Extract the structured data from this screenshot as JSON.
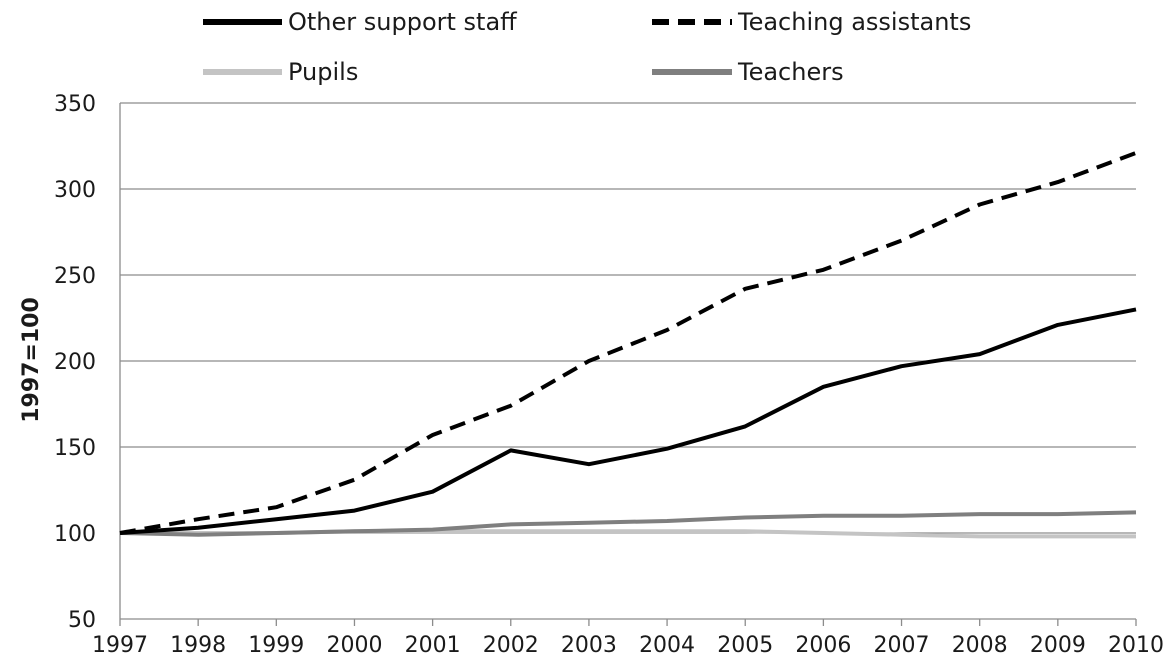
{
  "chart_data": {
    "type": "line",
    "title": "",
    "xlabel": "",
    "ylabel": "1997=100",
    "x": [
      1997,
      1998,
      1999,
      2000,
      2001,
      2002,
      2003,
      2004,
      2005,
      2006,
      2007,
      2008,
      2009,
      2010
    ],
    "x_tick_labels": [
      "1997",
      "1998",
      "1999",
      "2000",
      "2001",
      "2002",
      "2003",
      "2004",
      "2005",
      "2006",
      "2007",
      "2008",
      "2009",
      "2010"
    ],
    "y_ticks": [
      50,
      100,
      150,
      200,
      250,
      300,
      350
    ],
    "y_tick_labels": [
      "50",
      "100",
      "150",
      "200",
      "250",
      "300",
      "350"
    ],
    "ylim": [
      50,
      350
    ],
    "xlim": [
      1997,
      2010
    ],
    "grid": "horizontal",
    "legend_position": "top",
    "series": [
      {
        "name": "Other support staff",
        "color": "#000000",
        "dash": "solid",
        "values": [
          100,
          103,
          108,
          113,
          124,
          148,
          140,
          149,
          162,
          185,
          197,
          204,
          221,
          230
        ]
      },
      {
        "name": "Teaching assistants",
        "color": "#000000",
        "dash": "dashed",
        "values": [
          100,
          108,
          115,
          131,
          157,
          174,
          200,
          218,
          242,
          253,
          270,
          291,
          304,
          321
        ]
      },
      {
        "name": "Pupils",
        "color": "#c4c4c4",
        "dash": "solid",
        "values": [
          100,
          100,
          100,
          101,
          101,
          101,
          101,
          101,
          101,
          100,
          99,
          98,
          98,
          98
        ]
      },
      {
        "name": "Teachers",
        "color": "#7f7f7f",
        "dash": "solid",
        "values": [
          100,
          99,
          100,
          101,
          102,
          105,
          106,
          107,
          109,
          110,
          110,
          111,
          111,
          112
        ]
      }
    ]
  }
}
